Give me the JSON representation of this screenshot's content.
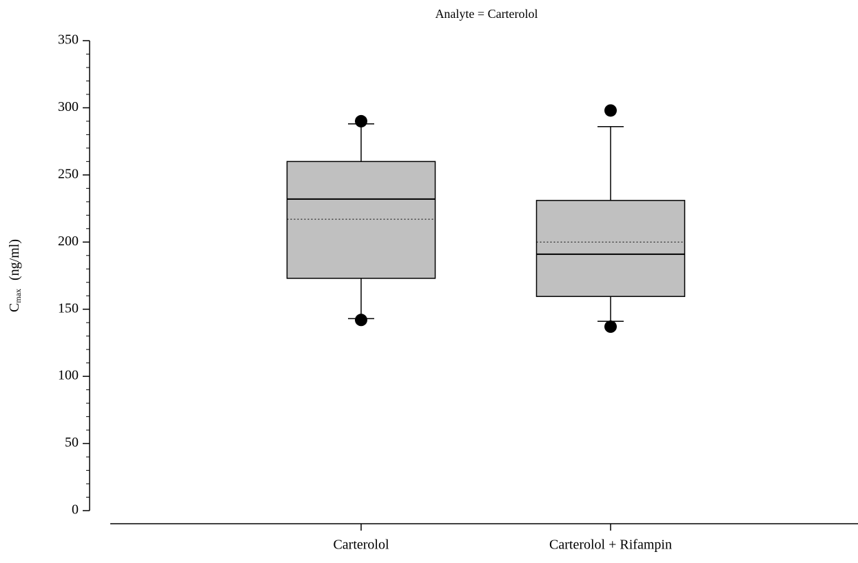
{
  "chart_data": {
    "type": "box",
    "title": "Analyte = Carterolol",
    "y_label": {
      "symbol": "C",
      "subscript": "max",
      "unit": "(ng/ml)"
    },
    "categories": [
      "Carterolol",
      "Carterolol + Rifampin"
    ],
    "color": "#c0c0c0",
    "boxes": [
      {
        "whisker_low": 143,
        "q1": 173,
        "median": 232,
        "q3": 260,
        "whisker_high": 288,
        "mean": 217,
        "outliers": [
          290,
          142
        ]
      },
      {
        "whisker_low": 141,
        "q1": 159.5,
        "median": 191,
        "q3": 231,
        "whisker_high": 286,
        "mean": 200,
        "outliers": [
          298,
          137
        ]
      }
    ],
    "ylim": [
      0,
      350
    ],
    "yticks": [
      0,
      50,
      100,
      150,
      200,
      250,
      300,
      350
    ],
    "yminorticks": [
      10,
      20,
      30,
      40,
      60,
      70,
      80,
      90,
      110,
      120,
      130,
      140,
      160,
      170,
      180,
      190,
      210,
      220,
      230,
      240,
      260,
      270,
      280,
      290,
      310,
      320,
      330,
      340
    ]
  }
}
